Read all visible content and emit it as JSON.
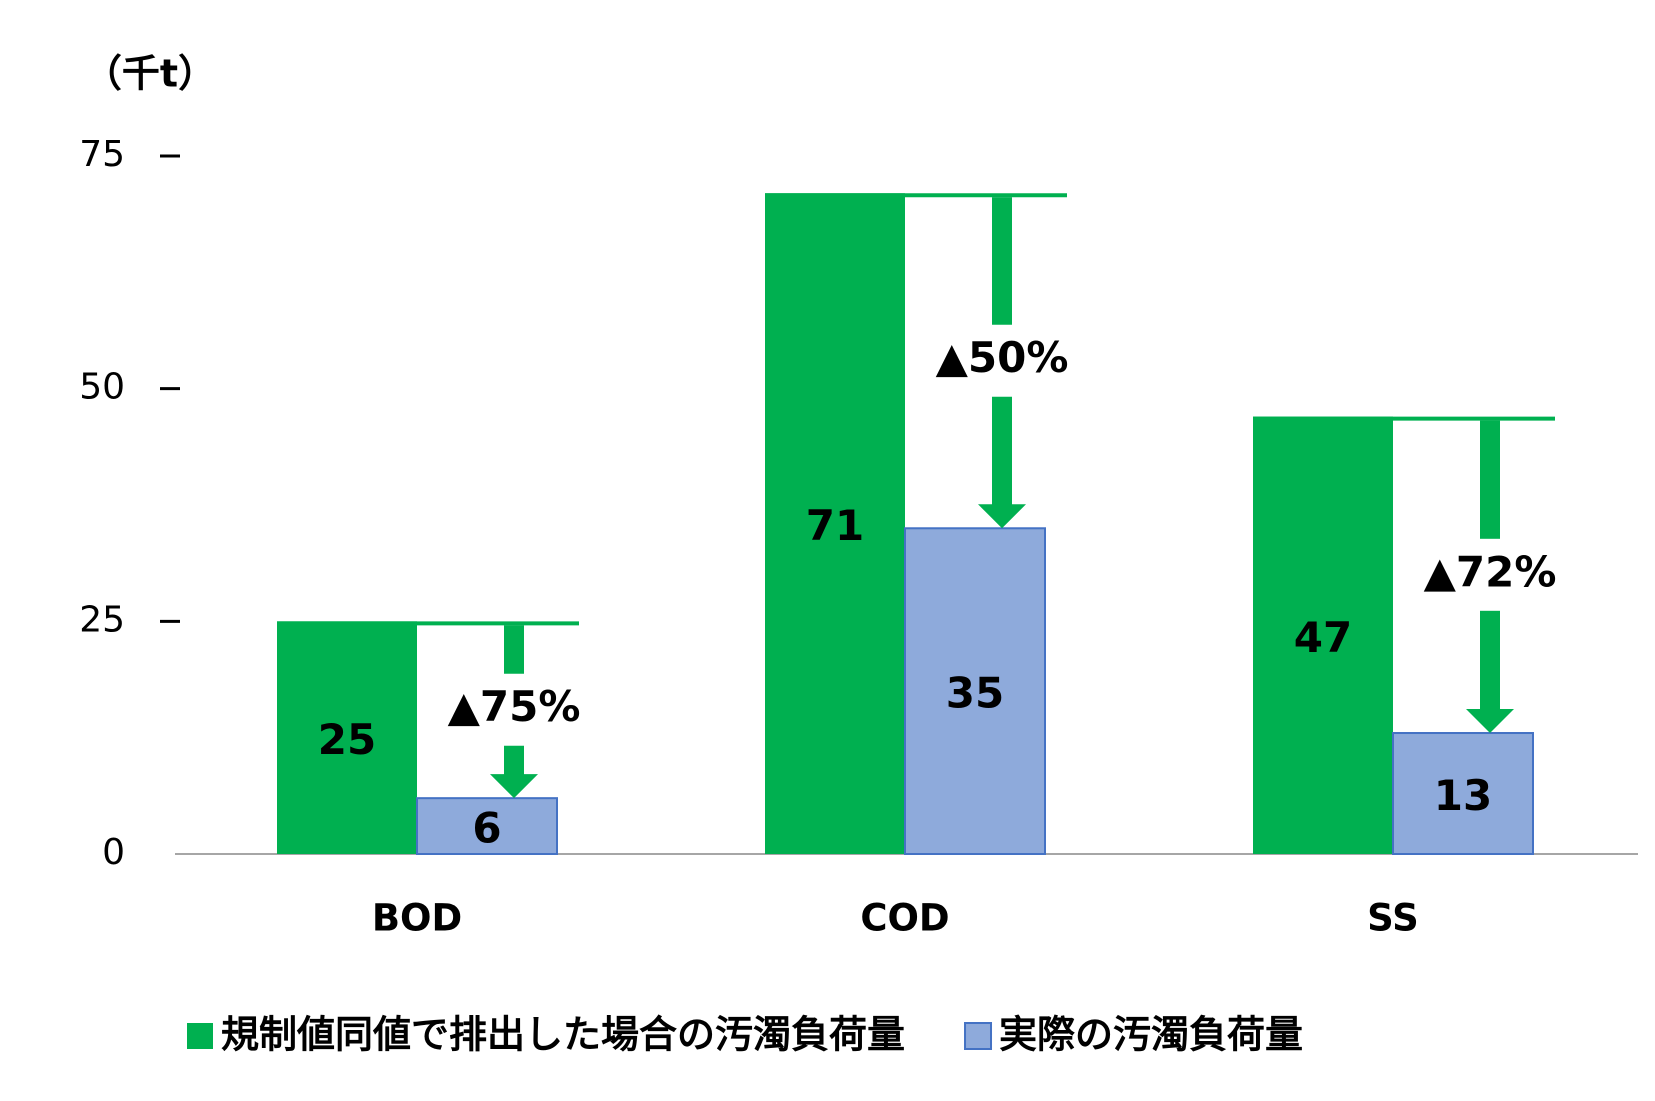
{
  "chart_data": {
    "type": "bar",
    "y_axis_label": "（千t）",
    "categories": [
      "BOD",
      "COD",
      "SS"
    ],
    "series": [
      {
        "name": "規制値同値で排出した場合の汚濁負荷量",
        "color": "#00b050",
        "values": [
          25,
          71,
          47
        ]
      },
      {
        "name": "実際の汚濁負荷量",
        "color": "#8eaadb",
        "values": [
          6,
          35,
          13
        ]
      }
    ],
    "annotations": [
      "▲75%",
      "▲50%",
      "▲72%"
    ],
    "ylim": [
      0,
      75
    ],
    "yticks": [
      0,
      25,
      50,
      75
    ]
  }
}
